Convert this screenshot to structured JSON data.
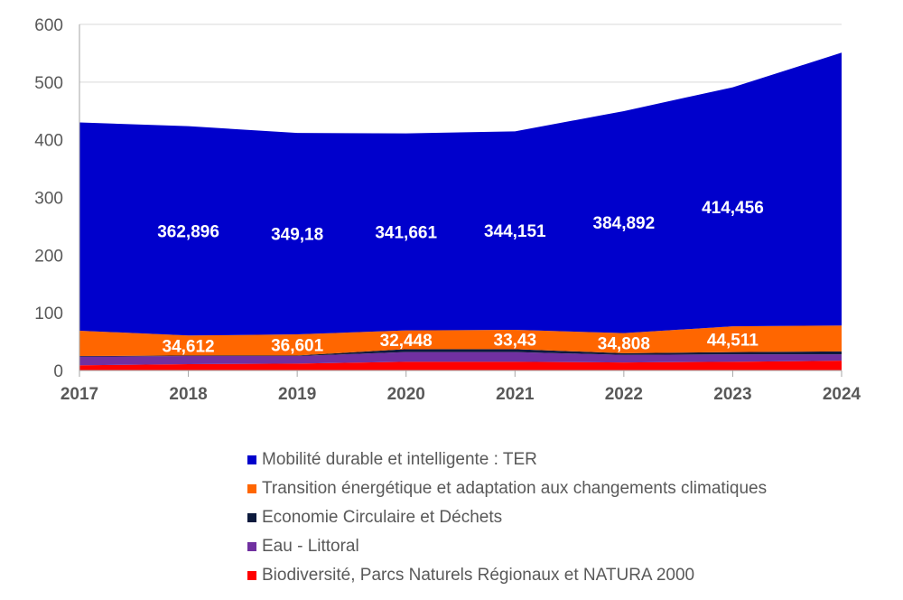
{
  "chart_data": {
    "type": "area",
    "stacked": true,
    "title": "",
    "xlabel": "",
    "ylabel": "",
    "x": [
      "2017",
      "2018",
      "2019",
      "2020",
      "2021",
      "2022",
      "2023",
      "2024"
    ],
    "ylim": [
      0,
      600
    ],
    "yticks": [
      0,
      100,
      200,
      300,
      400,
      500,
      600
    ],
    "grid": true,
    "legend_position": "bottom",
    "series": [
      {
        "name": "Biodiversité, Parcs Naturels Régionaux et NATURA 2000",
        "color": "#ff0000",
        "values": [
          9,
          11,
          12,
          15,
          15,
          14,
          15,
          17
        ],
        "labels": [
          null,
          null,
          null,
          null,
          null,
          null,
          null,
          null
        ]
      },
      {
        "name": "Eau - Littoral",
        "color": "#7030a0",
        "values": [
          15,
          14,
          13,
          17,
          17,
          13,
          13,
          11
        ],
        "labels": [
          null,
          null,
          null,
          null,
          null,
          null,
          null,
          null
        ]
      },
      {
        "name": "Economie Circulaire et Déchets",
        "color": "#0d1a3d",
        "values": [
          1,
          1,
          1,
          5,
          5,
          3,
          4,
          5
        ],
        "labels": [
          null,
          null,
          null,
          null,
          null,
          null,
          null,
          null
        ]
      },
      {
        "name": "Transition énergétique et adaptation aux changements climatiques",
        "color": "#ff6600",
        "values": [
          44,
          34.612,
          36.601,
          32.448,
          33.43,
          34.808,
          44.511,
          45
        ],
        "labels": [
          null,
          "34,612",
          "36,601",
          "32,448",
          "33,43",
          "34,808",
          "44,511",
          null
        ]
      },
      {
        "name": "Mobilité durable et intelligente : TER",
        "color": "#0000cc",
        "values": [
          361,
          362.896,
          349.18,
          341.661,
          344.151,
          384.892,
          414.456,
          473
        ],
        "labels": [
          null,
          "362,896",
          "349,18",
          "341,661",
          "344,151",
          "384,892",
          "414,456",
          null
        ]
      }
    ],
    "legend_order": [
      4,
      3,
      2,
      1,
      0
    ]
  },
  "colors": {
    "axis": "#a6a6a6",
    "grid": "#d9d9d9",
    "text": "#595959",
    "data_label": "#ffffff"
  }
}
